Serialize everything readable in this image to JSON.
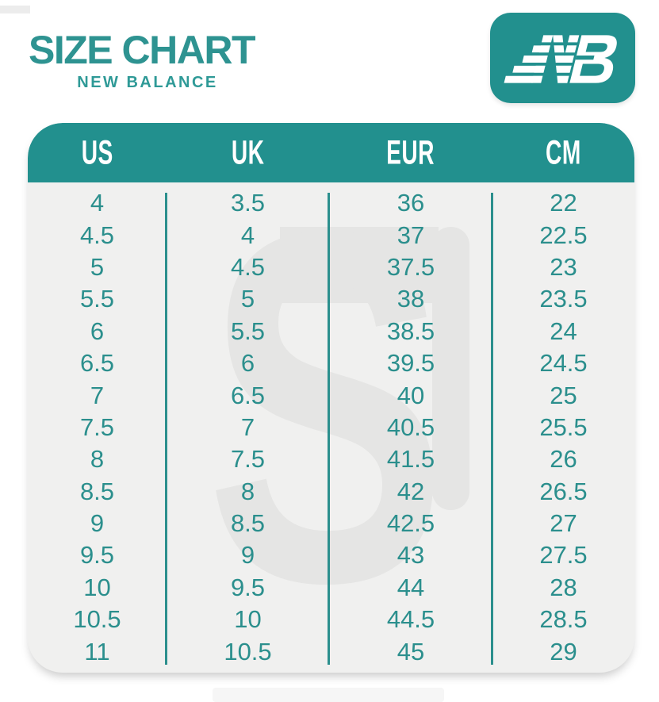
{
  "page": {
    "title": "SIZE CHART",
    "subtitle": "NEW BALANCE",
    "watermark_glyph": "S",
    "logo": {
      "name": "new-balance-nb-logo"
    },
    "colors": {
      "brand_teal": "#22908e",
      "text_teal": "#2b8f8d",
      "title_teal": "#2e9391",
      "card_background": "#f0f0ef",
      "watermark_gray": "#e5e5e4",
      "header_text": "#ffffff"
    }
  },
  "chart_data": {
    "type": "table",
    "title": "SIZE CHART",
    "subtitle": "NEW BALANCE",
    "columns": [
      "US",
      "UK",
      "EUR",
      "CM"
    ],
    "rows": [
      [
        "4",
        "3.5",
        "36",
        "22"
      ],
      [
        "4.5",
        "4",
        "37",
        "22.5"
      ],
      [
        "5",
        "4.5",
        "37.5",
        "23"
      ],
      [
        "5.5",
        "5",
        "38",
        "23.5"
      ],
      [
        "6",
        "5.5",
        "38.5",
        "24"
      ],
      [
        "6.5",
        "6",
        "39.5",
        "24.5"
      ],
      [
        "7",
        "6.5",
        "40",
        "25"
      ],
      [
        "7.5",
        "7",
        "40.5",
        "25.5"
      ],
      [
        "8",
        "7.5",
        "41.5",
        "26"
      ],
      [
        "8.5",
        "8",
        "42",
        "26.5"
      ],
      [
        "9",
        "8.5",
        "42.5",
        "27"
      ],
      [
        "9.5",
        "9",
        "43",
        "27.5"
      ],
      [
        "10",
        "9.5",
        "44",
        "28"
      ],
      [
        "10.5",
        "10",
        "44.5",
        "28.5"
      ],
      [
        "11",
        "10.5",
        "45",
        "29"
      ]
    ]
  }
}
